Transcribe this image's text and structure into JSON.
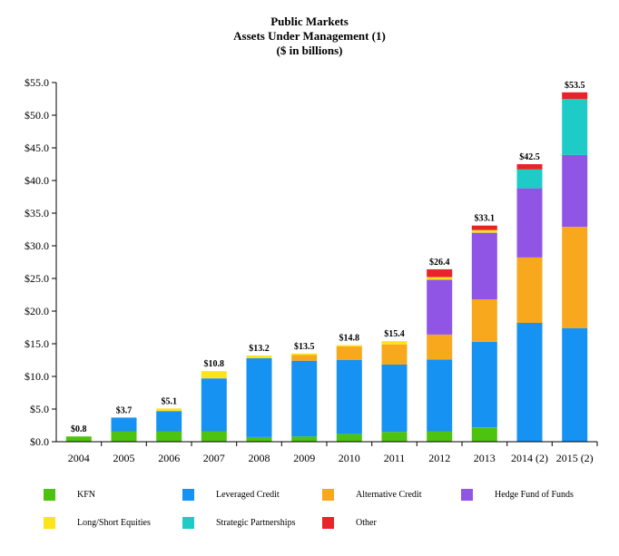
{
  "chart_data": {
    "type": "bar",
    "stacked": true,
    "title": "Public Markets",
    "subtitle": "Assets Under Management (1)",
    "units_note": "($ in billions)",
    "categories": [
      "2004",
      "2005",
      "2006",
      "2007",
      "2008",
      "2009",
      "2010",
      "2011",
      "2012",
      "2013",
      "2014 (2)",
      "2015 (2)"
    ],
    "ylim": [
      0,
      55
    ],
    "yticks": [
      0,
      5,
      10,
      15,
      20,
      25,
      30,
      35,
      40,
      45,
      50,
      55
    ],
    "ytick_labels": [
      "$0.0",
      "$5.0",
      "$10.0",
      "$15.0",
      "$20.0",
      "$25.0",
      "$30.0",
      "$35.0",
      "$40.0",
      "$45.0",
      "$50.0",
      "$55.0"
    ],
    "grid": false,
    "legend_position": "bottom",
    "totals": [
      "$0.8",
      "$3.7",
      "$5.1",
      "$10.8",
      "$13.2",
      "$13.5",
      "$14.8",
      "$15.4",
      "$26.4",
      "$33.1",
      "$42.5",
      "$53.5"
    ],
    "series": [
      {
        "name": "KFN",
        "color": "#4DC30F",
        "values": [
          0.8,
          1.6,
          1.6,
          1.6,
          0.7,
          0.8,
          1.2,
          1.5,
          1.6,
          2.2,
          0,
          0
        ]
      },
      {
        "name": "Leveraged Credit",
        "color": "#1592F2",
        "values": [
          0,
          2.1,
          3.1,
          8.1,
          12.1,
          11.6,
          11.3,
          10.3,
          11.0,
          13.1,
          18.2,
          17.4
        ]
      },
      {
        "name": "Alternative Credit",
        "color": "#F8A81C",
        "values": [
          0,
          0,
          0,
          0,
          0,
          0.9,
          2.1,
          3.1,
          3.8,
          6.5,
          10.0,
          15.5
        ]
      },
      {
        "name": "Hedge Fund of Funds",
        "color": "#9155E6",
        "values": [
          0,
          0,
          0,
          0,
          0,
          0,
          0,
          0,
          8.4,
          10.2,
          10.6,
          11.0
        ]
      },
      {
        "name": "Long/Short Equities",
        "color": "#FDE41A",
        "values": [
          0,
          0,
          0.4,
          1.1,
          0.4,
          0.2,
          0.2,
          0.5,
          0.4,
          0.4,
          0,
          0
        ]
      },
      {
        "name": "Strategic Partnerships",
        "color": "#1ECBC6",
        "values": [
          0,
          0,
          0,
          0,
          0,
          0,
          0,
          0,
          0,
          0,
          2.9,
          8.6
        ]
      },
      {
        "name": "Other",
        "color": "#E8232A",
        "values": [
          0,
          0,
          0,
          0,
          0,
          0,
          0,
          0,
          1.2,
          0.7,
          0.8,
          1.0
        ]
      }
    ]
  }
}
